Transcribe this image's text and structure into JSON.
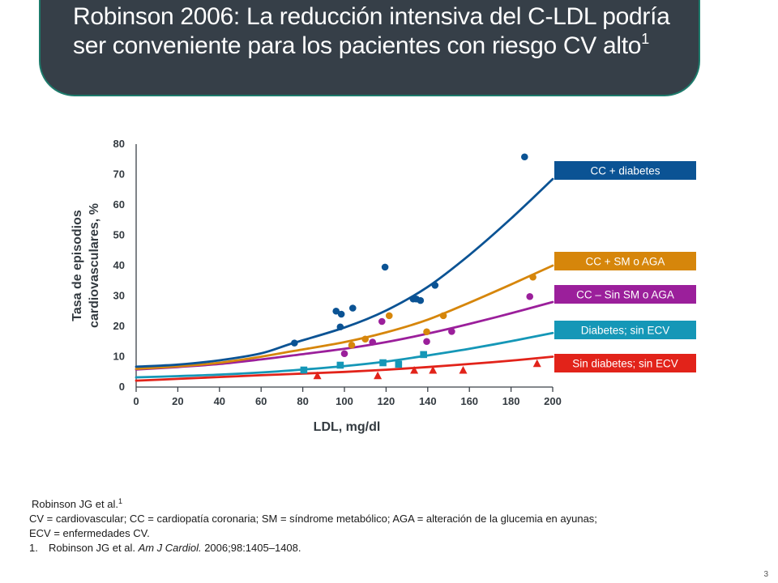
{
  "slide": {
    "title_main": "Robinson 2006: La reducción intensiva del C-LDL podría ser conveniente para los pacientes con riesgo CV alto",
    "title_superscript": "1",
    "page_number": "3"
  },
  "footnotes": {
    "source": "Robinson JG et al.",
    "source_superscript": "1",
    "abbrev_line1": "CV = cardiovascular;  CC = cardiopatía coronaria; SM = síndrome metabólico; AGA = alteración de la glucemia en ayunas;",
    "abbrev_line2": "ECV = enfermedades CV.",
    "ref_number": "1.",
    "ref_authors": "Robinson JG et al. ",
    "ref_journal": "Am J Cardiol.",
    "ref_details": " 2006;98:1405–1408."
  },
  "chart_data": {
    "type": "scatter",
    "title": "",
    "xlabel": "LDL, mg/dl",
    "ylabel_line1": "Tasa de episodios",
    "ylabel_line2": "cardiovasculares, %",
    "xlim": [
      0,
      200
    ],
    "ylim": [
      0,
      80
    ],
    "xticks": [
      0,
      20,
      40,
      60,
      80,
      100,
      120,
      140,
      160,
      180,
      200
    ],
    "yticks": [
      0,
      10,
      20,
      30,
      40,
      50,
      60,
      70,
      80
    ],
    "grid": false,
    "legend_position": "right",
    "series": [
      {
        "name": "CC + diabetes",
        "color": "#0b5394",
        "marker": "circle",
        "points": [
          [
            76,
            14.5
          ],
          [
            96,
            25
          ],
          [
            98.5,
            24
          ],
          [
            98,
            19.8
          ],
          [
            104,
            26
          ],
          [
            119.5,
            39.5
          ],
          [
            133,
            29
          ],
          [
            134.5,
            29
          ],
          [
            136.5,
            28.5
          ],
          [
            143.5,
            33.5
          ],
          [
            186.5,
            75.8
          ]
        ],
        "curve": [
          [
            0,
            6.7
          ],
          [
            20,
            7.4
          ],
          [
            40,
            8.8
          ],
          [
            60,
            11.1
          ],
          [
            75,
            14.4
          ],
          [
            100,
            19.6
          ],
          [
            120,
            25.2
          ],
          [
            140,
            33.0
          ],
          [
            160,
            43.5
          ],
          [
            180,
            55.5
          ],
          [
            200,
            68.5
          ]
        ]
      },
      {
        "name": "CC + SM o AGA",
        "color": "#d6860b",
        "marker": "circle",
        "points": [
          [
            103.5,
            13.8
          ],
          [
            110,
            15.8
          ],
          [
            121.5,
            23.5
          ],
          [
            139.5,
            18.2
          ],
          [
            147.5,
            23.5
          ],
          [
            190.5,
            36.2
          ]
        ],
        "curve": [
          [
            0,
            6.0
          ],
          [
            20,
            6.8
          ],
          [
            40,
            8.0
          ],
          [
            60,
            10.0
          ],
          [
            75,
            11.8
          ],
          [
            100,
            14.8
          ],
          [
            120,
            18.0
          ],
          [
            140,
            22.2
          ],
          [
            160,
            27.8
          ],
          [
            180,
            33.8
          ],
          [
            200,
            40.0
          ]
        ]
      },
      {
        "name": "CC  – Sin SM o AGA",
        "color": "#9b1f9b",
        "marker": "circle",
        "points": [
          [
            100,
            11
          ],
          [
            113.5,
            14.8
          ],
          [
            118,
            21.6
          ],
          [
            139.5,
            15
          ],
          [
            151.5,
            18.3
          ],
          [
            189,
            29.8
          ]
        ],
        "curve": [
          [
            0,
            5.8
          ],
          [
            20,
            6.6
          ],
          [
            40,
            7.6
          ],
          [
            60,
            9.1
          ],
          [
            75,
            10.4
          ],
          [
            100,
            12.6
          ],
          [
            120,
            14.8
          ],
          [
            140,
            17.6
          ],
          [
            160,
            20.8
          ],
          [
            180,
            24.3
          ],
          [
            200,
            28.0
          ]
        ]
      },
      {
        "name": "Diabetes; sin ECV",
        "color": "#1597b7",
        "marker": "square",
        "points": [
          [
            80.5,
            5.6
          ],
          [
            98,
            7.2
          ],
          [
            118.5,
            8.0
          ],
          [
            126,
            7.5
          ],
          [
            138,
            10.7
          ]
        ],
        "curve": [
          [
            0,
            3.2
          ],
          [
            20,
            3.6
          ],
          [
            40,
            4.1
          ],
          [
            60,
            4.8
          ],
          [
            75,
            5.5
          ],
          [
            100,
            6.9
          ],
          [
            120,
            8.4
          ],
          [
            140,
            10.4
          ],
          [
            160,
            12.6
          ],
          [
            180,
            15.1
          ],
          [
            200,
            17.8
          ]
        ]
      },
      {
        "name": "Sin diabetes; sin ECV",
        "color": "#e2231a",
        "marker": "triangle",
        "points": [
          [
            87,
            3.8
          ],
          [
            116,
            3.8
          ],
          [
            133.5,
            5.6
          ],
          [
            142.5,
            5.6
          ],
          [
            157,
            5.6
          ],
          [
            192.5,
            7.8
          ]
        ],
        "curve": [
          [
            0,
            2.1
          ],
          [
            20,
            2.7
          ],
          [
            40,
            3.3
          ],
          [
            60,
            3.9
          ],
          [
            75,
            4.3
          ],
          [
            100,
            5.0
          ],
          [
            120,
            5.7
          ],
          [
            140,
            6.6
          ],
          [
            160,
            7.6
          ],
          [
            180,
            8.7
          ],
          [
            200,
            10.0
          ]
        ]
      }
    ]
  }
}
